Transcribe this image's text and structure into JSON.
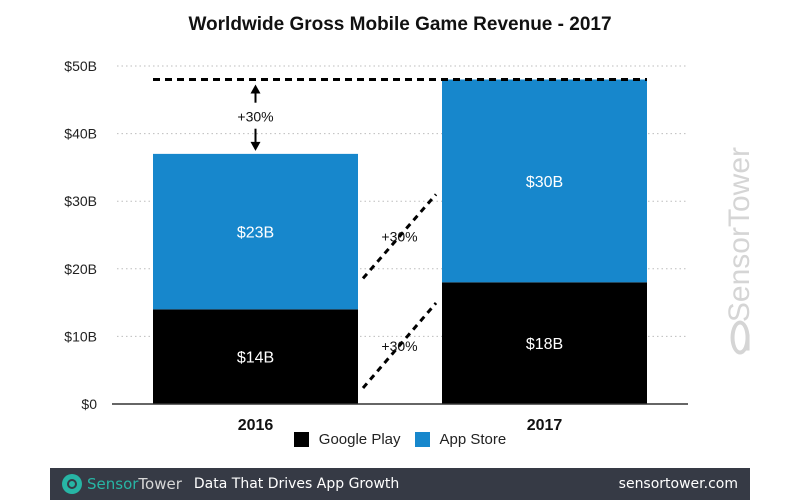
{
  "chart_data": {
    "type": "bar",
    "stacked": true,
    "title": "Worldwide Gross Mobile Game Revenue - 2017",
    "xlabel": "",
    "ylabel": "",
    "categories": [
      "2016",
      "2017"
    ],
    "series": [
      {
        "name": "Google Play",
        "values": [
          14,
          18
        ],
        "labels": [
          "$14B",
          "$18B"
        ],
        "color": "#000000"
      },
      {
        "name": "App Store",
        "values": [
          23,
          30
        ],
        "labels": [
          "$23B",
          "$30B"
        ],
        "color": "#1787cc"
      }
    ],
    "ylim": [
      0,
      50
    ],
    "yticks": [
      0,
      10,
      20,
      30,
      40,
      50
    ],
    "ytick_labels": [
      "$0",
      "$10B",
      "$20B",
      "$30B",
      "$40B",
      "$50B"
    ],
    "grid": true,
    "legend_position": "bottom-center",
    "annotations": [
      {
        "text": "+30%",
        "type": "total-growth"
      },
      {
        "text": "+30%",
        "type": "app-store-growth"
      },
      {
        "text": "+30%",
        "type": "google-play-growth"
      }
    ]
  },
  "watermark": "SensorTower",
  "footer": {
    "brand_part1": "Sensor",
    "brand_part2": "Tower",
    "tagline": "Data That Drives App Growth",
    "url": "sensortower.com"
  },
  "colors": {
    "google_play": "#000000",
    "app_store": "#1787cc",
    "footer_bg": "#363a45",
    "brand_teal": "#27b5a5"
  }
}
